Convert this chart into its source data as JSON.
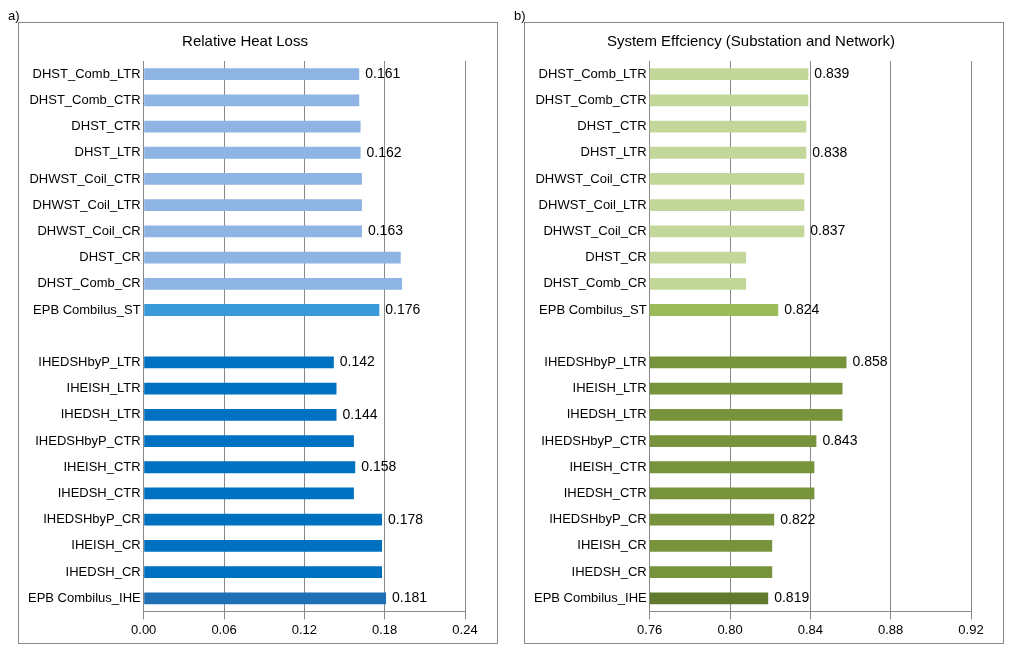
{
  "chart_data": [
    {
      "type": "bar",
      "orientation": "horizontal",
      "title": "Relative Heat Loss",
      "annotations": [
        "a)"
      ],
      "categories": [
        "DHST_Comb_LTR",
        "DHST_Comb_CTR",
        "DHST_CTR",
        "DHST_LTR",
        "DHWST_Coil_CTR",
        "DHWST_Coil_LTR",
        "DHWST_Coil_CR",
        "DHST_CR",
        "DHST_Comb_CR",
        "EPB Combilus_ST",
        null,
        "IHEDSHbyP_LTR",
        "IHEISH_LTR",
        "IHEDSH_LTR",
        "IHEDSHbyP_CTR",
        "IHEISH_CTR",
        "IHEDSH_CTR",
        "IHEDSHbyP_CR",
        "IHEISH_CR",
        "IHEDSH_CR",
        "EPB Combilus_IHE"
      ],
      "values": [
        0.161,
        0.161,
        0.162,
        0.162,
        0.163,
        0.163,
        0.163,
        0.192,
        0.193,
        0.176,
        null,
        0.142,
        0.144,
        0.144,
        0.157,
        0.158,
        0.157,
        0.178,
        0.178,
        0.178,
        0.181
      ],
      "value_labels": [
        "0.161",
        null,
        null,
        "0.162",
        null,
        null,
        "0.163",
        null,
        null,
        "0.176",
        null,
        "0.142",
        null,
        "0.144",
        null,
        "0.158",
        null,
        "0.178",
        null,
        null,
        "0.181"
      ],
      "colors": [
        "#8db4e2",
        "#8db4e2",
        "#8db4e2",
        "#8db4e2",
        "#8db4e2",
        "#8db4e2",
        "#8db4e2",
        "#8db4e2",
        "#8db4e2",
        "#3a9ad9",
        null,
        "#0070c0",
        "#0070c0",
        "#0070c0",
        "#0070c0",
        "#0070c0",
        "#0070c0",
        "#0070c0",
        "#0070c0",
        "#0070c0",
        "#1f6fb5"
      ],
      "xlim": [
        0,
        0.24
      ],
      "xticks": [
        {
          "value": 0,
          "label": "0.00"
        },
        0.06,
        0.12,
        0.18,
        0.24
      ],
      "grid": "x",
      "legend": false
    },
    {
      "type": "bar",
      "orientation": "horizontal",
      "title": "System Effciency (Substation and Network)",
      "annotations": [
        "b)"
      ],
      "categories": [
        "DHST_Comb_LTR",
        "DHST_Comb_CTR",
        "DHST_CTR",
        "DHST_LTR",
        "DHWST_Coil_CTR",
        "DHWST_Coil_LTR",
        "DHWST_Coil_CR",
        "DHST_CR",
        "DHST_Comb_CR",
        "EPB Combilus_ST",
        null,
        "IHEDSHbyP_LTR",
        "IHEISH_LTR",
        "IHEDSH_LTR",
        "IHEDSHbyP_CTR",
        "IHEISH_CTR",
        "IHEDSH_CTR",
        "IHEDSHbyP_CR",
        "IHEISH_CR",
        "IHEDSH_CR",
        "EPB Combilus_IHE"
      ],
      "values": [
        0.839,
        0.839,
        0.838,
        0.838,
        0.837,
        0.837,
        0.837,
        0.808,
        0.808,
        0.824,
        null,
        0.858,
        0.856,
        0.856,
        0.843,
        0.842,
        0.842,
        0.822,
        0.821,
        0.821,
        0.819
      ],
      "value_labels": [
        "0.839",
        null,
        null,
        "0.838",
        null,
        null,
        "0.837",
        null,
        null,
        "0.824",
        null,
        "0.858",
        null,
        null,
        "0.843",
        null,
        null,
        "0.822",
        null,
        null,
        "0.819"
      ],
      "colors": [
        "#c4d79b",
        "#c4d79b",
        "#c4d79b",
        "#c4d79b",
        "#c4d79b",
        "#c4d79b",
        "#c4d79b",
        "#c4d79b",
        "#c4d79b",
        "#9bbb59",
        null,
        "#77933c",
        "#77933c",
        "#77933c",
        "#77933c",
        "#77933c",
        "#77933c",
        "#77933c",
        "#77933c",
        "#77933c",
        "#5f7a2e"
      ],
      "xlim": [
        0.76,
        0.92
      ],
      "xticks": [
        0.76,
        {
          "value": 0.8,
          "label": "0.80"
        },
        0.84,
        0.88,
        0.92
      ],
      "grid": "x",
      "legend": false
    }
  ]
}
